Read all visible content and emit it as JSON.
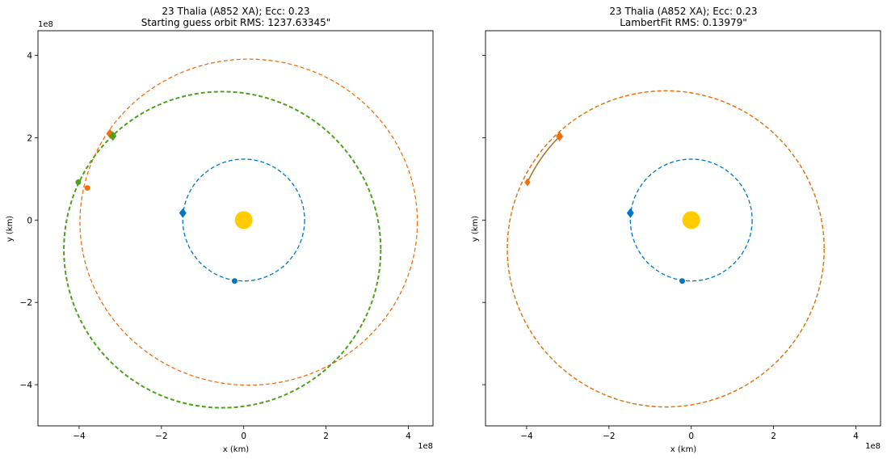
{
  "chart_data": [
    {
      "type": "scatter",
      "title": "23 Thalia (A852 XA); Ecc: 0.23",
      "subtitle": "Starting guess orbit RMS: 1237.63345\"",
      "xlabel": "x (km)",
      "ylabel": "y (km)",
      "offset_text": "1e8",
      "xlim": [
        -5.0,
        4.6
      ],
      "ylim": [
        -5.0,
        4.6
      ],
      "xticks": [
        -4,
        -2,
        0,
        2,
        4
      ],
      "xtick_labels": [
        "−4",
        "−2",
        "0",
        "2",
        "4"
      ],
      "yticks": [
        -4,
        -2,
        0,
        2,
        4
      ],
      "ytick_labels": [
        "−4",
        "−2",
        "0",
        "2",
        "4"
      ],
      "show_ytick_labels": true,
      "grid": false,
      "sun": {
        "x": 0,
        "y": 0,
        "color": "#FFCC00"
      },
      "orbits": [
        {
          "cx": 0,
          "cy": 0,
          "rx": 1.48,
          "ry": 1.48,
          "color": "#0076C8",
          "width": 1.3
        },
        {
          "cx": 0.12,
          "cy": -0.05,
          "rx": 4.1,
          "ry": 3.96,
          "color": "#F07010",
          "width": 1.3
        },
        {
          "cx": -0.52,
          "cy": -0.72,
          "rx": 3.85,
          "ry": 3.84,
          "color": "#50A020",
          "width": 2.0
        }
      ],
      "arcs": [],
      "markers": [
        {
          "x": -1.48,
          "y": 0.17,
          "color": "#0076C8",
          "shape": "diamond",
          "size": 6
        },
        {
          "x": -0.22,
          "y": -1.48,
          "color": "#0076C8",
          "shape": "dot",
          "size": 3.5
        },
        {
          "x": -3.25,
          "y": 2.1,
          "color": "#F07010",
          "shape": "diamond",
          "size": 6
        },
        {
          "x": -3.8,
          "y": 0.78,
          "color": "#F07010",
          "shape": "dot",
          "size": 3.5
        },
        {
          "x": -3.18,
          "y": 2.04,
          "color": "#50A020",
          "shape": "diamond",
          "size": 6
        },
        {
          "x": -4.02,
          "y": 0.92,
          "color": "#50A020",
          "shape": "dot",
          "size": 3.5
        }
      ]
    },
    {
      "type": "scatter",
      "title": "23 Thalia (A852 XA); Ecc: 0.23",
      "subtitle": "LambertFit RMS: 0.13979\"",
      "xlabel": "x (km)",
      "ylabel": "y (km)",
      "offset_text": "1e8",
      "xlim": [
        -5.0,
        4.6
      ],
      "ylim": [
        -5.0,
        4.6
      ],
      "xticks": [
        -4,
        -2,
        0,
        2,
        4
      ],
      "xtick_labels": [
        "−4",
        "−2",
        "0",
        "2",
        "4"
      ],
      "yticks": [
        -4,
        -2,
        0,
        2,
        4
      ],
      "ytick_labels": [
        "",
        "",
        "",
        "",
        ""
      ],
      "show_ytick_labels": false,
      "grid": false,
      "sun": {
        "x": 0,
        "y": 0,
        "color": "#FFCC00"
      },
      "orbits": [
        {
          "cx": 0,
          "cy": 0,
          "rx": 1.48,
          "ry": 1.48,
          "color": "#0076C8",
          "width": 1.3
        },
        {
          "cx": -0.62,
          "cy": -0.7,
          "rx": 3.85,
          "ry": 3.84,
          "color": "#7A9418",
          "width": 1.3
        },
        {
          "cx": -0.62,
          "cy": -0.7,
          "rx": 3.85,
          "ry": 3.84,
          "color": "#F07010",
          "width": 1.3
        }
      ],
      "arcs": [
        {
          "from": {
            "x": -3.98,
            "y": 0.92
          },
          "to": {
            "x": -3.2,
            "y": 2.03
          },
          "color": "#A07828",
          "width": 1.5
        }
      ],
      "markers": [
        {
          "x": -1.48,
          "y": 0.17,
          "color": "#0076C8",
          "shape": "diamond",
          "size": 6
        },
        {
          "x": -0.22,
          "y": -1.48,
          "color": "#0076C8",
          "shape": "dot",
          "size": 3.5
        },
        {
          "x": -3.2,
          "y": 2.03,
          "color": "#F07010",
          "shape": "diamond",
          "size": 6
        },
        {
          "x": -3.98,
          "y": 0.92,
          "color": "#F07010",
          "shape": "diamond",
          "size": 5
        }
      ]
    }
  ]
}
